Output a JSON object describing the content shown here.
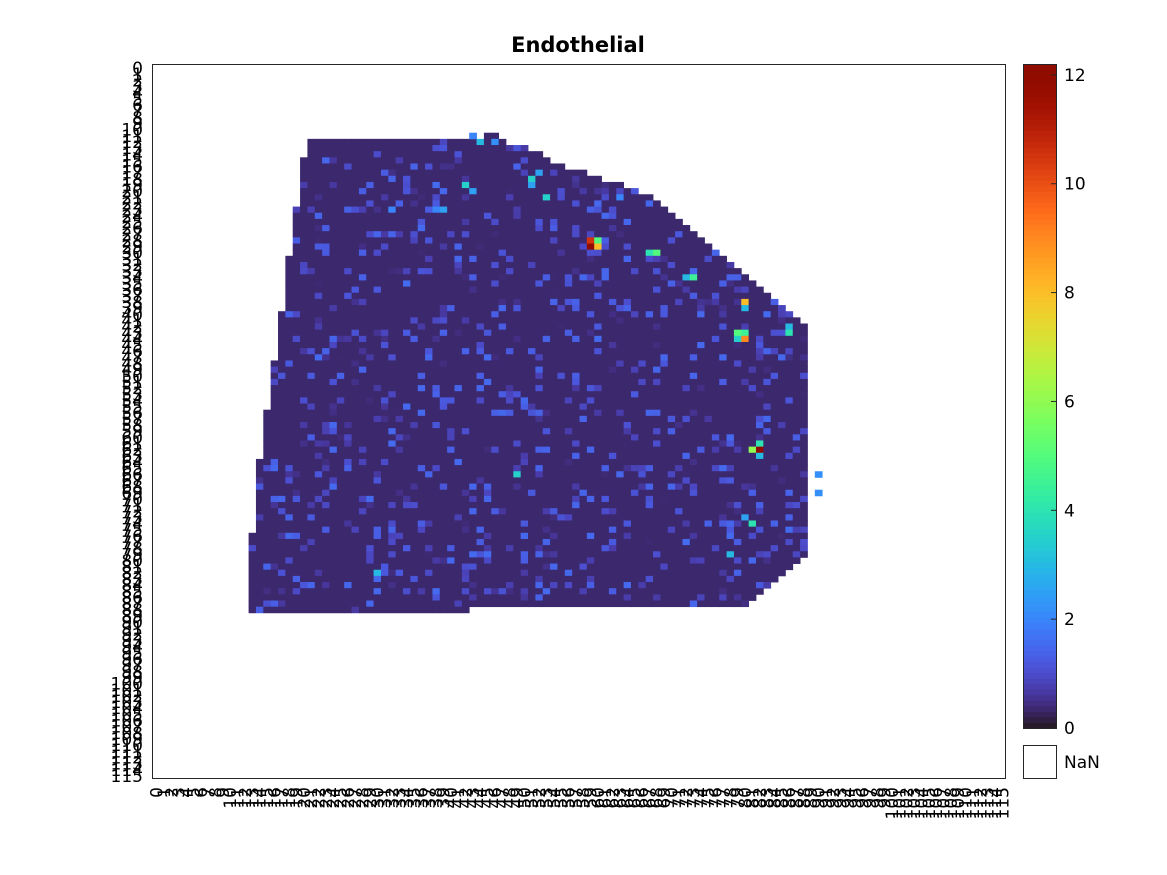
{
  "chart_data": {
    "type": "heatmap",
    "title": "Endothelial",
    "xlabel": "",
    "ylabel": "",
    "x_ticks": {
      "start": 0,
      "end": 115,
      "step": 1
    },
    "y_ticks": {
      "start": 0,
      "end": 115,
      "step": 1
    },
    "colormap": "turbo",
    "clim": [
      0,
      12.2
    ],
    "colorbar_ticks": [
      0,
      2,
      4,
      6,
      8,
      10,
      12
    ],
    "nan_label": "NaN",
    "nan_color": "#ffffff",
    "baseline_value": 0.35,
    "region_row_spans": [
      [
        11,
        45,
        46
      ],
      [
        12,
        21,
        47
      ],
      [
        13,
        21,
        50
      ],
      [
        14,
        21,
        52
      ],
      [
        15,
        20,
        53
      ],
      [
        16,
        20,
        55
      ],
      [
        17,
        20,
        58
      ],
      [
        18,
        20,
        60
      ],
      [
        19,
        20,
        63
      ],
      [
        20,
        20,
        65
      ],
      [
        21,
        20,
        67
      ],
      [
        22,
        20,
        68
      ],
      [
        23,
        19,
        69
      ],
      [
        24,
        19,
        70
      ],
      [
        25,
        19,
        71
      ],
      [
        26,
        19,
        72
      ],
      [
        27,
        19,
        73
      ],
      [
        28,
        19,
        74
      ],
      [
        29,
        19,
        75
      ],
      [
        30,
        19,
        76
      ],
      [
        31,
        18,
        77
      ],
      [
        32,
        18,
        78
      ],
      [
        33,
        18,
        79
      ],
      [
        34,
        18,
        80
      ],
      [
        35,
        18,
        81
      ],
      [
        36,
        18,
        82
      ],
      [
        37,
        18,
        83
      ],
      [
        38,
        18,
        84
      ],
      [
        39,
        18,
        85
      ],
      [
        40,
        17,
        86
      ],
      [
        41,
        17,
        87
      ],
      [
        42,
        17,
        88
      ],
      [
        43,
        17,
        88
      ],
      [
        44,
        17,
        88
      ],
      [
        45,
        17,
        88
      ],
      [
        46,
        17,
        88
      ],
      [
        47,
        17,
        88
      ],
      [
        48,
        16,
        88
      ],
      [
        49,
        16,
        88
      ],
      [
        50,
        16,
        88
      ],
      [
        51,
        16,
        88
      ],
      [
        52,
        16,
        88
      ],
      [
        53,
        16,
        88
      ],
      [
        54,
        16,
        88
      ],
      [
        55,
        16,
        88
      ],
      [
        56,
        15,
        88
      ],
      [
        57,
        15,
        88
      ],
      [
        58,
        15,
        88
      ],
      [
        59,
        15,
        88
      ],
      [
        60,
        15,
        88
      ],
      [
        61,
        15,
        88
      ],
      [
        62,
        15,
        88
      ],
      [
        63,
        15,
        88
      ],
      [
        64,
        14,
        88
      ],
      [
        65,
        14,
        88
      ],
      [
        66,
        14,
        88
      ],
      [
        67,
        14,
        88
      ],
      [
        68,
        14,
        88
      ],
      [
        69,
        14,
        88
      ],
      [
        70,
        14,
        88
      ],
      [
        71,
        14,
        88
      ],
      [
        72,
        14,
        88
      ],
      [
        73,
        14,
        88
      ],
      [
        74,
        14,
        88
      ],
      [
        75,
        14,
        88
      ],
      [
        76,
        13,
        88
      ],
      [
        77,
        13,
        88
      ],
      [
        78,
        13,
        88
      ],
      [
        79,
        13,
        88
      ],
      [
        80,
        13,
        87
      ],
      [
        81,
        13,
        86
      ],
      [
        82,
        13,
        85
      ],
      [
        83,
        13,
        84
      ],
      [
        84,
        13,
        83
      ],
      [
        85,
        13,
        82
      ],
      [
        86,
        13,
        81
      ],
      [
        87,
        13,
        80
      ],
      [
        88,
        13,
        42
      ]
    ],
    "region_row_extensions": [
      [
        11,
        37,
        46
      ],
      [
        88,
        13,
        42
      ]
    ],
    "hotspots": [
      [
        59,
        29,
        12.0
      ],
      [
        59,
        28,
        10.5
      ],
      [
        60,
        29,
        8.0
      ],
      [
        60,
        28,
        5.0
      ],
      [
        82,
        62,
        12.0
      ],
      [
        81,
        62,
        6.0
      ],
      [
        82,
        61,
        4.0
      ],
      [
        82,
        63,
        3.0
      ],
      [
        80,
        44,
        9.0
      ],
      [
        79,
        43,
        5.0
      ],
      [
        80,
        43,
        4.5
      ],
      [
        79,
        44,
        3.5
      ],
      [
        80,
        38,
        8.0
      ],
      [
        80,
        39,
        3.0
      ],
      [
        68,
        30,
        5.0
      ],
      [
        67,
        30,
        4.0
      ],
      [
        73,
        34,
        4.5
      ],
      [
        72,
        34,
        3.0
      ],
      [
        86,
        43,
        4.0
      ],
      [
        86,
        42,
        3.0
      ],
      [
        44,
        12,
        3.0
      ],
      [
        43,
        11,
        2.0
      ],
      [
        51,
        18,
        3.5
      ],
      [
        52,
        17,
        2.5
      ],
      [
        51,
        19,
        2.5
      ],
      [
        53,
        21,
        3.5
      ],
      [
        42,
        19,
        3.5
      ],
      [
        43,
        20,
        2.5
      ],
      [
        39,
        23,
        2.5
      ],
      [
        38,
        23,
        2.0
      ],
      [
        81,
        74,
        4.0
      ],
      [
        80,
        73,
        2.5
      ],
      [
        49,
        66,
        3.5
      ],
      [
        78,
        79,
        3.0
      ],
      [
        30,
        82,
        3.0
      ],
      [
        90,
        66,
        2.2
      ],
      [
        90,
        69,
        2.2
      ],
      [
        63,
        21,
        2.0
      ],
      [
        32,
        23,
        2.0
      ],
      [
        46,
        12,
        2.2
      ]
    ],
    "noise_amplitude": 1.2,
    "noise_density": 0.15
  },
  "colorbar": {
    "nan_label": "NaN"
  }
}
